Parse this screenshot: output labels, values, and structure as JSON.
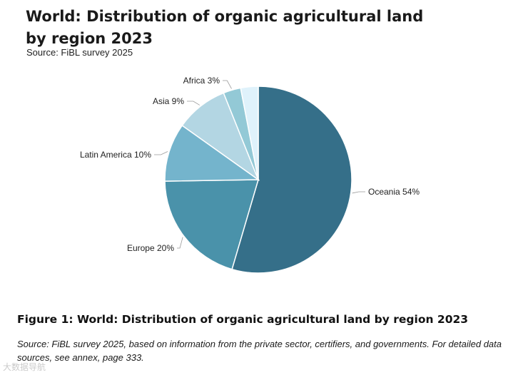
{
  "chart_data": {
    "type": "pie",
    "title": "World: Distribution of organic agricultural land by region 2023",
    "subtitle": "Source: FiBL survey 2025",
    "slices": [
      {
        "label": "Oceania 54%",
        "value": 54,
        "color": "#356f89"
      },
      {
        "label": "Europe 20%",
        "value": 20,
        "color": "#4a92aa"
      },
      {
        "label": "Latin America 10%",
        "value": 10,
        "color": "#74b4cc"
      },
      {
        "label": "Asia 9%",
        "value": 9,
        "color": "#b3d6e3"
      },
      {
        "label": "Africa 3%",
        "value": 3,
        "color": "#93c9d6"
      },
      {
        "label": "",
        "value": 3,
        "color": "#dff2fb"
      }
    ]
  },
  "caption": "Figure 1: World: Distribution of organic agricultural land by region 2023",
  "note": "Source: FiBL survey 2025, based on information from the private sector, certifiers, and governments. For detailed data sources, see annex, page 333.",
  "watermark": "大数据导航"
}
